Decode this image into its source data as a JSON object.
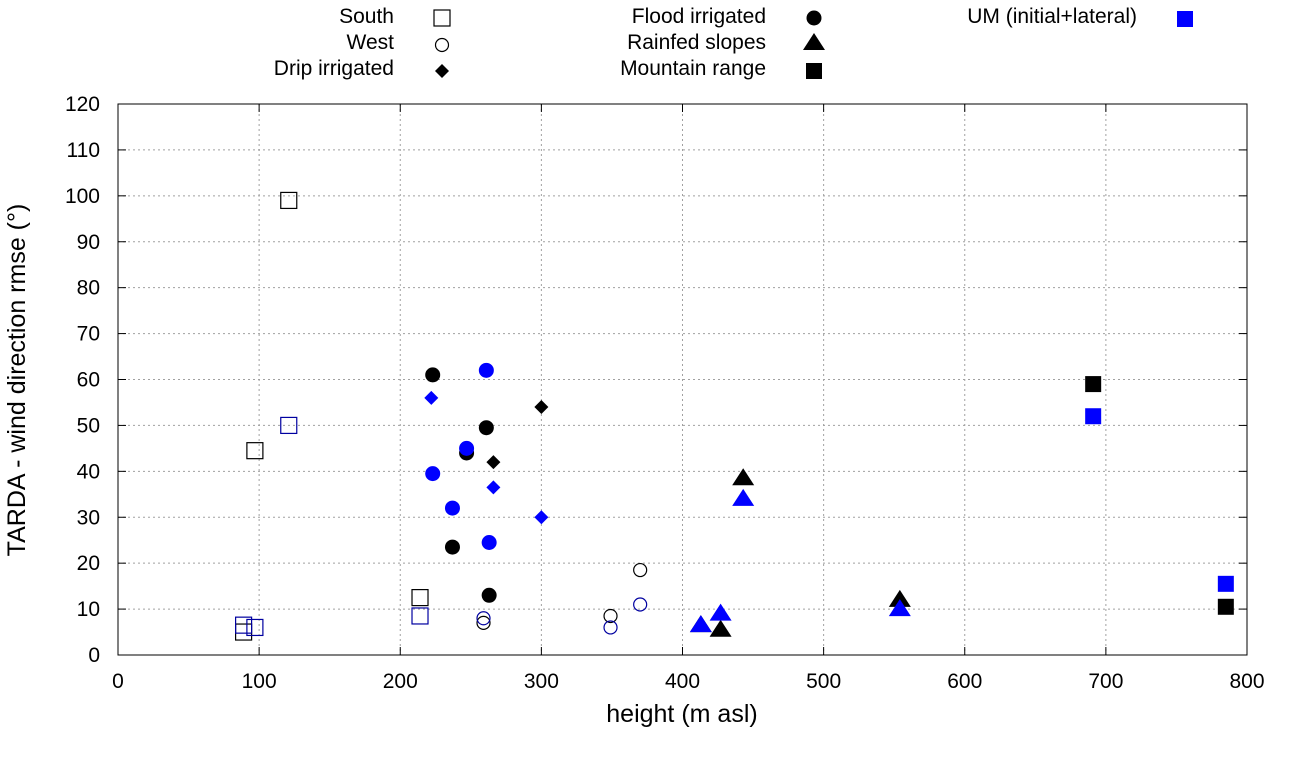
{
  "chart_data": {
    "type": "scatter",
    "xlabel": "height (m asl)",
    "ylabel": "TARDA - wind direction rmse (°)",
    "xlim": [
      0,
      800
    ],
    "ylim": [
      0,
      120
    ],
    "xticks": [
      0,
      100,
      200,
      300,
      400,
      500,
      600,
      700,
      800
    ],
    "yticks": [
      0,
      10,
      20,
      30,
      40,
      50,
      60,
      70,
      80,
      90,
      100,
      110,
      120
    ],
    "grid": true,
    "legend_position": "top",
    "colors": {
      "tarda": "#000000",
      "um": "#0000ff",
      "um_open": "#0000a0"
    },
    "legend": [
      {
        "label": "South",
        "marker": "square-open",
        "color": "#000000"
      },
      {
        "label": "West",
        "marker": "circle-open",
        "color": "#000000"
      },
      {
        "label": "Drip irrigated",
        "marker": "diamond",
        "color": "#000000"
      },
      {
        "label": "Flood irrigated",
        "marker": "circle",
        "color": "#000000"
      },
      {
        "label": "Rainfed slopes",
        "marker": "triangle",
        "color": "#000000"
      },
      {
        "label": "Mountain range",
        "marker": "square",
        "color": "#000000"
      },
      {
        "label": "UM (initial+lateral)",
        "marker": "square",
        "color": "#0000ff"
      }
    ],
    "series": [
      {
        "name": "South",
        "model": "TARDA",
        "marker": "square-open",
        "color": "#000000",
        "points": [
          [
            89,
            5
          ],
          [
            97,
            44.5
          ],
          [
            121,
            99
          ],
          [
            214,
            12.5
          ]
        ]
      },
      {
        "name": "South",
        "model": "UM",
        "marker": "square-open",
        "color": "#0000a0",
        "points": [
          [
            89,
            6.5
          ],
          [
            97,
            6
          ],
          [
            121,
            50
          ],
          [
            214,
            8.5
          ]
        ]
      },
      {
        "name": "West",
        "model": "TARDA",
        "marker": "circle-open",
        "color": "#000000",
        "points": [
          [
            259,
            7
          ],
          [
            349,
            8.5
          ],
          [
            370,
            18.5
          ]
        ]
      },
      {
        "name": "West",
        "model": "UM",
        "marker": "circle-open",
        "color": "#0000a0",
        "points": [
          [
            259,
            8
          ],
          [
            349,
            6
          ],
          [
            370,
            11
          ]
        ]
      },
      {
        "name": "Drip irrigated",
        "model": "TARDA",
        "marker": "diamond",
        "color": "#000000",
        "points": [
          [
            266,
            42
          ],
          [
            300,
            54
          ]
        ]
      },
      {
        "name": "Drip irrigated",
        "model": "UM",
        "marker": "diamond",
        "color": "#0000ff",
        "points": [
          [
            222,
            56
          ],
          [
            266,
            36.5
          ],
          [
            300,
            30
          ]
        ]
      },
      {
        "name": "Flood irrigated",
        "model": "TARDA",
        "marker": "circle",
        "color": "#000000",
        "points": [
          [
            223,
            61
          ],
          [
            237,
            23.5
          ],
          [
            247,
            44
          ],
          [
            261,
            49.5
          ],
          [
            263,
            13
          ]
        ]
      },
      {
        "name": "Flood irrigated",
        "model": "UM",
        "marker": "circle",
        "color": "#0000ff",
        "points": [
          [
            223,
            39.5
          ],
          [
            237,
            32
          ],
          [
            247,
            45
          ],
          [
            261,
            62
          ],
          [
            263,
            24.5
          ]
        ]
      },
      {
        "name": "Rainfed slopes",
        "model": "TARDA",
        "marker": "triangle",
        "color": "#000000",
        "points": [
          [
            413,
            6.5
          ],
          [
            427,
            5.5
          ],
          [
            443,
            38.5
          ],
          [
            554,
            12
          ]
        ]
      },
      {
        "name": "Rainfed slopes",
        "model": "UM",
        "marker": "triangle",
        "color": "#0000ff",
        "points": [
          [
            413,
            6.5
          ],
          [
            427,
            9
          ],
          [
            443,
            34
          ],
          [
            554,
            10
          ]
        ]
      },
      {
        "name": "Mountain range",
        "model": "TARDA",
        "marker": "square",
        "color": "#000000",
        "points": [
          [
            691,
            59
          ],
          [
            785,
            10.5
          ]
        ]
      },
      {
        "name": "Mountain range",
        "model": "UM",
        "marker": "square",
        "color": "#0000ff",
        "points": [
          [
            691,
            52
          ],
          [
            785,
            15.5
          ]
        ]
      }
    ]
  }
}
